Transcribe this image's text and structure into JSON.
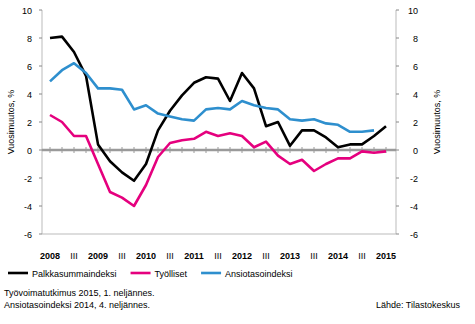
{
  "chart_data": {
    "type": "line",
    "y_label": "Vuosimuutos, %",
    "y2_label": "Vuosimuutos, %",
    "categories": [
      "2008",
      null,
      "III",
      null,
      "2009",
      null,
      "III",
      null,
      "2010",
      null,
      "III",
      null,
      "2011",
      null,
      "III",
      null,
      "2012",
      null,
      "III",
      null,
      "2013",
      null,
      "III",
      null,
      "2014",
      null,
      "III",
      null,
      "2015"
    ],
    "series": [
      {
        "name": "Palkkasummaindeksi",
        "color": "#000000",
        "values": [
          8.0,
          8.1,
          7.0,
          5.3,
          0.4,
          -0.8,
          -1.6,
          -2.2,
          -1.0,
          1.4,
          2.8,
          3.9,
          4.8,
          5.2,
          5.1,
          3.5,
          5.5,
          4.4,
          1.7,
          2.0,
          0.3,
          1.4,
          1.4,
          0.9,
          0.2,
          0.4,
          0.4,
          1.0,
          1.7
        ]
      },
      {
        "name": "Työlliset",
        "color": "#e5007e",
        "values": [
          2.5,
          2.0,
          1.0,
          1.0,
          -1.0,
          -3.0,
          -3.4,
          -4.0,
          -2.5,
          -0.5,
          0.5,
          0.7,
          0.8,
          1.3,
          1.0,
          1.2,
          1.0,
          0.2,
          0.6,
          -0.4,
          -1.0,
          -0.7,
          -1.5,
          -1.0,
          -0.6,
          -0.6,
          -0.1,
          -0.2,
          -0.1
        ]
      },
      {
        "name": "Ansiotasoindeksi",
        "color": "#2e8fce",
        "values": [
          4.9,
          5.7,
          6.2,
          5.5,
          4.4,
          4.4,
          4.3,
          2.9,
          3.2,
          2.6,
          2.4,
          2.2,
          2.1,
          2.9,
          3.0,
          2.9,
          3.5,
          3.2,
          3.0,
          2.9,
          2.2,
          2.1,
          2.2,
          1.9,
          1.8,
          1.3,
          1.3,
          1.4,
          null
        ]
      }
    ],
    "ylim": [
      -6,
      10
    ],
    "yticks": [
      -6,
      -4,
      -2,
      0,
      2,
      4,
      6,
      8,
      10
    ],
    "y2lim": [
      -6,
      10
    ],
    "y2ticks": [
      -6,
      -4,
      -2,
      0,
      2,
      4,
      6,
      8,
      10
    ],
    "grid": false,
    "legend": "bottom",
    "annotations": [
      "Työvoimatutkimus 2015, 1. neljännes.",
      "Ansiotasoindeksi 2014, 4. neljännes."
    ],
    "source": "Lähde: Tilastokeskus"
  }
}
